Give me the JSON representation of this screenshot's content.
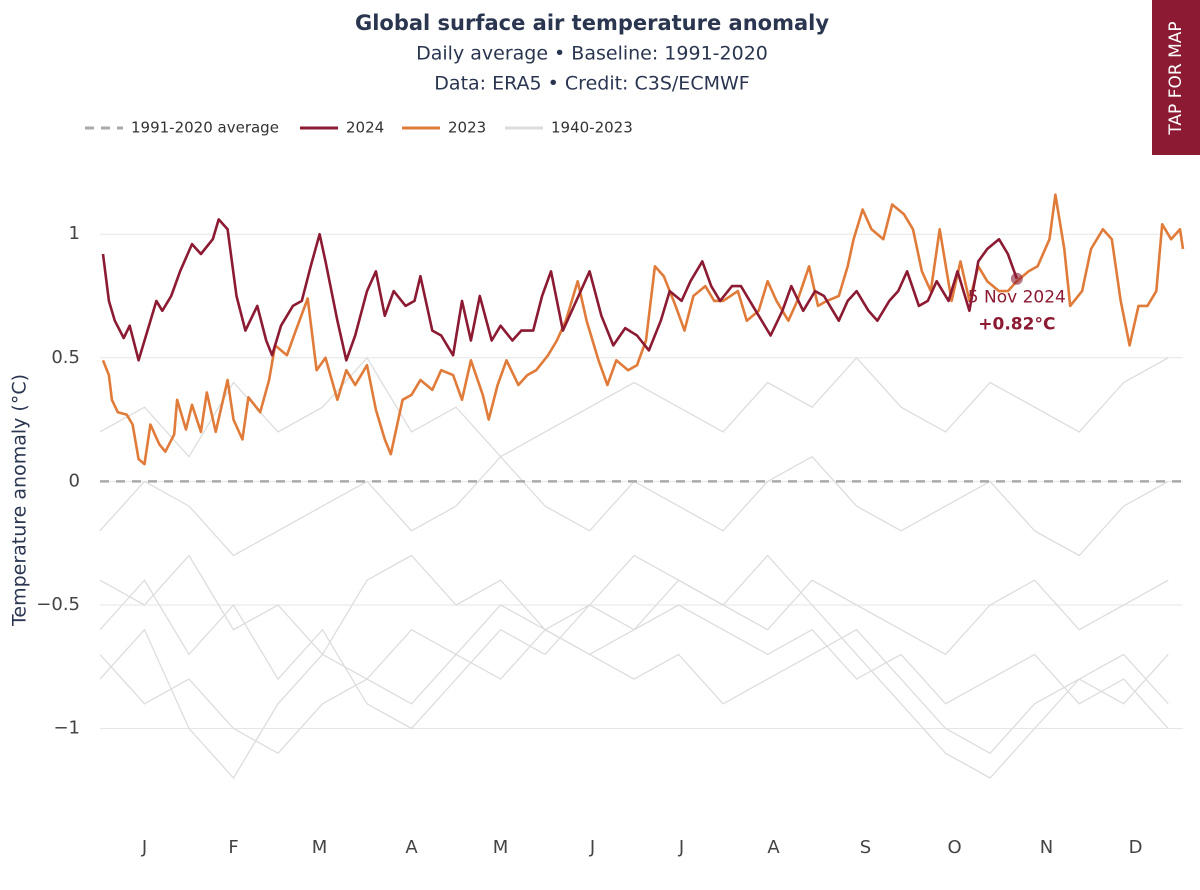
{
  "chart_data": {
    "type": "line",
    "title": "Global surface air temperature anomaly",
    "subtitle": [
      "Daily average • Baseline: 1991-2020",
      "Data: ERA5 • Credit: C3S/ECMWF"
    ],
    "y_label": "Temperature anomaly (°C)",
    "xlim": [
      1,
      366
    ],
    "ylim": [
      -1.37,
      1.28
    ],
    "xticks": [
      {
        "value": 16,
        "label": "J"
      },
      {
        "value": 46,
        "label": "F"
      },
      {
        "value": 75,
        "label": "M"
      },
      {
        "value": 106,
        "label": "A"
      },
      {
        "value": 136,
        "label": "M"
      },
      {
        "value": 167,
        "label": "J"
      },
      {
        "value": 197,
        "label": "J"
      },
      {
        "value": 228,
        "label": "A"
      },
      {
        "value": 259,
        "label": "S"
      },
      {
        "value": 289,
        "label": "O"
      },
      {
        "value": 320,
        "label": "N"
      },
      {
        "value": 350,
        "label": "D"
      }
    ],
    "yticks": [
      {
        "value": -1,
        "label": "−1"
      },
      {
        "value": -0.5,
        "label": "−0.5"
      },
      0,
      0.5,
      1
    ],
    "grid": true,
    "reference_line": {
      "name": "1991-2020 average",
      "value": 0,
      "color": "#aaaaaa"
    },
    "series": [
      {
        "name": "2024",
        "color": "#8b1a32",
        "x": [
          2,
          4,
          6,
          9,
          11,
          14,
          17,
          20,
          22,
          25,
          28,
          32,
          35,
          39,
          41,
          44,
          47,
          50,
          54,
          57,
          59,
          62,
          66,
          69,
          72,
          75,
          77,
          81,
          84,
          87,
          91,
          94,
          97,
          100,
          104,
          107,
          109,
          113,
          116,
          120,
          123,
          126,
          129,
          133,
          136,
          140,
          143,
          147,
          150,
          153,
          157,
          160,
          163,
          166,
          170,
          174,
          178,
          182,
          186,
          190,
          193,
          197,
          200,
          204,
          207,
          210,
          214,
          217,
          220,
          224,
          227,
          231,
          234,
          238,
          242,
          245,
          250,
          253,
          256,
          260,
          263,
          267,
          270,
          273,
          277,
          280,
          283,
          287,
          290,
          294,
          297,
          300,
          304,
          307,
          310
        ],
        "values": [
          0.92,
          0.73,
          0.65,
          0.58,
          0.63,
          0.49,
          0.61,
          0.73,
          0.69,
          0.75,
          0.85,
          0.96,
          0.92,
          0.98,
          1.06,
          1.02,
          0.75,
          0.61,
          0.71,
          0.57,
          0.51,
          0.63,
          0.71,
          0.73,
          0.87,
          1.0,
          0.89,
          0.65,
          0.49,
          0.59,
          0.77,
          0.85,
          0.67,
          0.77,
          0.71,
          0.73,
          0.83,
          0.61,
          0.59,
          0.51,
          0.73,
          0.57,
          0.75,
          0.57,
          0.63,
          0.57,
          0.61,
          0.61,
          0.75,
          0.85,
          0.61,
          0.69,
          0.77,
          0.85,
          0.67,
          0.55,
          0.62,
          0.59,
          0.53,
          0.65,
          0.77,
          0.73,
          0.81,
          0.89,
          0.79,
          0.73,
          0.79,
          0.79,
          0.73,
          0.65,
          0.59,
          0.69,
          0.79,
          0.69,
          0.77,
          0.75,
          0.65,
          0.73,
          0.77,
          0.69,
          0.65,
          0.73,
          0.77,
          0.85,
          0.71,
          0.73,
          0.81,
          0.73,
          0.85,
          0.69,
          0.89,
          0.94,
          0.98,
          0.92,
          0.82
        ]
      },
      {
        "name": "2023",
        "color": "#e07b39",
        "x": [
          2,
          4,
          5,
          7,
          10,
          12,
          14,
          16,
          18,
          21,
          23,
          26,
          27,
          30,
          32,
          35,
          37,
          40,
          44,
          46,
          49,
          51,
          55,
          58,
          60,
          64,
          67,
          71,
          74,
          77,
          81,
          84,
          87,
          91,
          94,
          97,
          99,
          103,
          106,
          109,
          113,
          116,
          120,
          123,
          126,
          130,
          132,
          135,
          138,
          142,
          145,
          148,
          152,
          155,
          158,
          162,
          165,
          169,
          172,
          175,
          179,
          182,
          185,
          188,
          191,
          195,
          198,
          201,
          205,
          208,
          211,
          216,
          219,
          223,
          226,
          229,
          233,
          236,
          240,
          243,
          246,
          250,
          253,
          255,
          258,
          261,
          265,
          268,
          272,
          275,
          278,
          281,
          284,
          288,
          291,
          294,
          297,
          300,
          304,
          307,
          310,
          314,
          317,
          321,
          323,
          326,
          328,
          332,
          335,
          339,
          342,
          345,
          348,
          351,
          354,
          357,
          359,
          362,
          365,
          366
        ],
        "values": [
          0.49,
          0.43,
          0.33,
          0.28,
          0.27,
          0.23,
          0.09,
          0.07,
          0.23,
          0.15,
          0.12,
          0.19,
          0.33,
          0.21,
          0.31,
          0.2,
          0.36,
          0.2,
          0.41,
          0.25,
          0.17,
          0.34,
          0.28,
          0.41,
          0.55,
          0.51,
          0.61,
          0.74,
          0.45,
          0.5,
          0.33,
          0.45,
          0.39,
          0.47,
          0.29,
          0.17,
          0.11,
          0.33,
          0.35,
          0.41,
          0.37,
          0.45,
          0.43,
          0.33,
          0.49,
          0.35,
          0.25,
          0.39,
          0.49,
          0.39,
          0.43,
          0.45,
          0.51,
          0.57,
          0.65,
          0.81,
          0.65,
          0.49,
          0.39,
          0.49,
          0.45,
          0.47,
          0.57,
          0.87,
          0.83,
          0.71,
          0.61,
          0.75,
          0.79,
          0.73,
          0.73,
          0.77,
          0.65,
          0.69,
          0.81,
          0.73,
          0.65,
          0.73,
          0.87,
          0.71,
          0.73,
          0.75,
          0.87,
          0.98,
          1.1,
          1.02,
          0.98,
          1.12,
          1.08,
          1.02,
          0.85,
          0.77,
          1.02,
          0.73,
          0.89,
          0.73,
          0.87,
          0.81,
          0.77,
          0.77,
          0.81,
          0.85,
          0.87,
          0.98,
          1.16,
          0.94,
          0.71,
          0.77,
          0.94,
          1.02,
          0.98,
          0.73,
          0.55,
          0.71,
          0.71,
          0.77,
          1.04,
          0.98,
          1.02,
          0.94
        ]
      }
    ],
    "background": {
      "name": "1940-2023",
      "color": "#dddddd",
      "x": [
        1,
        16,
        31,
        46,
        61,
        76,
        91,
        106,
        121,
        136,
        151,
        166,
        181,
        196,
        211,
        226,
        241,
        256,
        271,
        286,
        301,
        316,
        331,
        346,
        361
      ],
      "lines": [
        [
          -0.7,
          -0.9,
          -0.8,
          -1.0,
          -1.1,
          -0.9,
          -0.8,
          -0.6,
          -0.7,
          -0.5,
          -0.6,
          -0.7,
          -0.6,
          -0.5,
          -0.6,
          -0.7,
          -0.6,
          -0.8,
          -0.7,
          -0.9,
          -0.8,
          -0.7,
          -0.9,
          -0.8,
          -1.0
        ],
        [
          -0.4,
          -0.5,
          -0.3,
          -0.6,
          -0.5,
          -0.7,
          -0.4,
          -0.3,
          -0.5,
          -0.4,
          -0.6,
          -0.5,
          -0.3,
          -0.4,
          -0.5,
          -0.6,
          -0.4,
          -0.5,
          -0.6,
          -0.7,
          -0.5,
          -0.4,
          -0.6,
          -0.5,
          -0.4
        ],
        [
          -0.8,
          -0.6,
          -1.0,
          -1.2,
          -0.9,
          -0.7,
          -0.8,
          -0.9,
          -0.7,
          -0.8,
          -0.6,
          -0.7,
          -0.8,
          -0.7,
          -0.9,
          -0.8,
          -0.7,
          -0.6,
          -0.8,
          -1.0,
          -1.1,
          -0.9,
          -0.8,
          -0.7,
          -0.9
        ],
        [
          -0.2,
          0.0,
          -0.1,
          -0.3,
          -0.2,
          -0.1,
          0.0,
          -0.2,
          -0.1,
          0.1,
          -0.1,
          -0.2,
          0.0,
          -0.1,
          -0.2,
          0.0,
          0.1,
          -0.1,
          -0.2,
          -0.1,
          0.0,
          -0.2,
          -0.3,
          -0.1,
          0.0
        ],
        [
          0.2,
          0.3,
          0.1,
          0.4,
          0.2,
          0.3,
          0.5,
          0.2,
          0.3,
          0.1,
          0.2,
          0.3,
          0.4,
          0.3,
          0.2,
          0.4,
          0.3,
          0.5,
          0.3,
          0.2,
          0.4,
          0.3,
          0.2,
          0.4,
          0.5
        ],
        [
          -0.6,
          -0.4,
          -0.7,
          -0.5,
          -0.8,
          -0.6,
          -0.9,
          -1.0,
          -0.8,
          -0.6,
          -0.7,
          -0.5,
          -0.6,
          -0.4,
          -0.5,
          -0.3,
          -0.5,
          -0.7,
          -0.9,
          -1.1,
          -1.2,
          -1.0,
          -0.8,
          -0.9,
          -0.7
        ]
      ]
    },
    "annotation": {
      "text": "5 Nov 2024",
      "value_label": "+0.82°C",
      "x": 310,
      "y": 0.82
    }
  },
  "tap_button": "TAP FOR MAP"
}
